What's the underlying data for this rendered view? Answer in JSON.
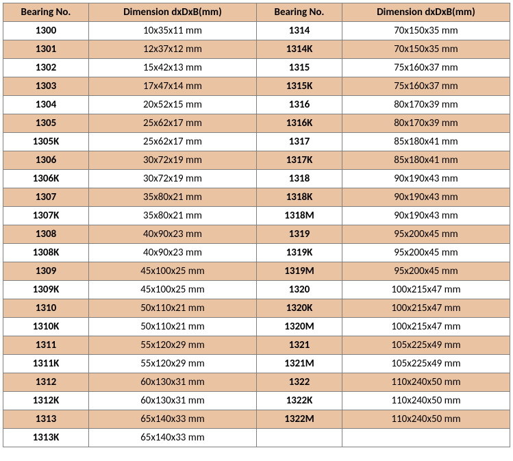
{
  "colors": {
    "header_bg": "#eac3a3",
    "stripe_bg": "#eac3a3",
    "plain_bg": "#ffffff",
    "border": "#808080",
    "text": "#000000"
  },
  "headers": {
    "bearing_left": "Bearing No.",
    "dim_left": "Dimension  dxDxB(mm)",
    "bearing_right": "Bearing No.",
    "dim_right": "Dimension  dxDxB(mm)"
  },
  "rows": [
    {
      "bl": "1300",
      "dl": "10x35x11 mm",
      "br": "1314",
      "dr": "70x150x35 mm",
      "stripe": false
    },
    {
      "bl": "1301",
      "dl": "12x37x12 mm",
      "br": "1314K",
      "dr": "70x150x35 mm",
      "stripe": true
    },
    {
      "bl": "1302",
      "dl": "15x42x13 mm",
      "br": "1315",
      "dr": "75x160x37 mm",
      "stripe": false
    },
    {
      "bl": "1303",
      "dl": "17x47x14 mm",
      "br": "1315K",
      "dr": "75x160x37 mm",
      "stripe": true
    },
    {
      "bl": "1304",
      "dl": "20x52x15 mm",
      "br": "1316",
      "dr": "80x170x39 mm",
      "stripe": false
    },
    {
      "bl": "1305",
      "dl": "25x62x17 mm",
      "br": "1316K",
      "dr": "80x170x39 mm",
      "stripe": true
    },
    {
      "bl": "1305K",
      "dl": "25x62x17 mm",
      "br": "1317",
      "dr": "85x180x41 mm",
      "stripe": false
    },
    {
      "bl": "1306",
      "dl": "30x72x19 mm",
      "br": "1317K",
      "dr": "85x180x41 mm",
      "stripe": true
    },
    {
      "bl": "1306K",
      "dl": "30x72x19 mm",
      "br": "1318",
      "dr": "90x190x43 mm",
      "stripe": false
    },
    {
      "bl": "1307",
      "dl": "35x80x21 mm",
      "br": "1318K",
      "dr": "90x190x43 mm",
      "stripe": true
    },
    {
      "bl": "1307K",
      "dl": "35x80x21 mm",
      "br": "1318M",
      "dr": "90x190x43 mm",
      "stripe": false
    },
    {
      "bl": "1308",
      "dl": "40x90x23 mm",
      "br": "1319",
      "dr": "95x200x45 mm",
      "stripe": true
    },
    {
      "bl": "1308K",
      "dl": "40x90x23 mm",
      "br": "1319K",
      "dr": "95x200x45 mm",
      "stripe": false
    },
    {
      "bl": "1309",
      "dl": "45x100x25 mm",
      "br": "1319M",
      "dr": "95x200x45 mm",
      "stripe": true
    },
    {
      "bl": "1309K",
      "dl": "45x100x25 mm",
      "br": "1320",
      "dr": "100x215x47 mm",
      "stripe": false
    },
    {
      "bl": "1310",
      "dl": "50x110x21 mm",
      "br": "1320K",
      "dr": "100x215x47 mm",
      "stripe": true
    },
    {
      "bl": "1310K",
      "dl": "50x110x21 mm",
      "br": "1320M",
      "dr": "100x215x47 mm",
      "stripe": false
    },
    {
      "bl": "1311",
      "dl": "55x120x29 mm",
      "br": "1321",
      "dr": "105x225x49 mm",
      "stripe": true
    },
    {
      "bl": "1311K",
      "dl": "55x120x29 mm",
      "br": "1321M",
      "dr": "105x225x49 mm",
      "stripe": false
    },
    {
      "bl": "1312",
      "dl": "60x130x31 mm",
      "br": "1322",
      "dr": "110x240x50 mm",
      "stripe": true
    },
    {
      "bl": "1312K",
      "dl": "60x130x31 mm",
      "br": "1322K",
      "dr": "110x240x50 mm",
      "stripe": false
    },
    {
      "bl": "1313",
      "dl": "65x140x33 mm",
      "br": "1322M",
      "dr": "110x240x50 mm",
      "stripe": true
    },
    {
      "bl": "1313K",
      "dl": "65x140x33 mm",
      "br": "",
      "dr": "",
      "stripe": false
    }
  ]
}
